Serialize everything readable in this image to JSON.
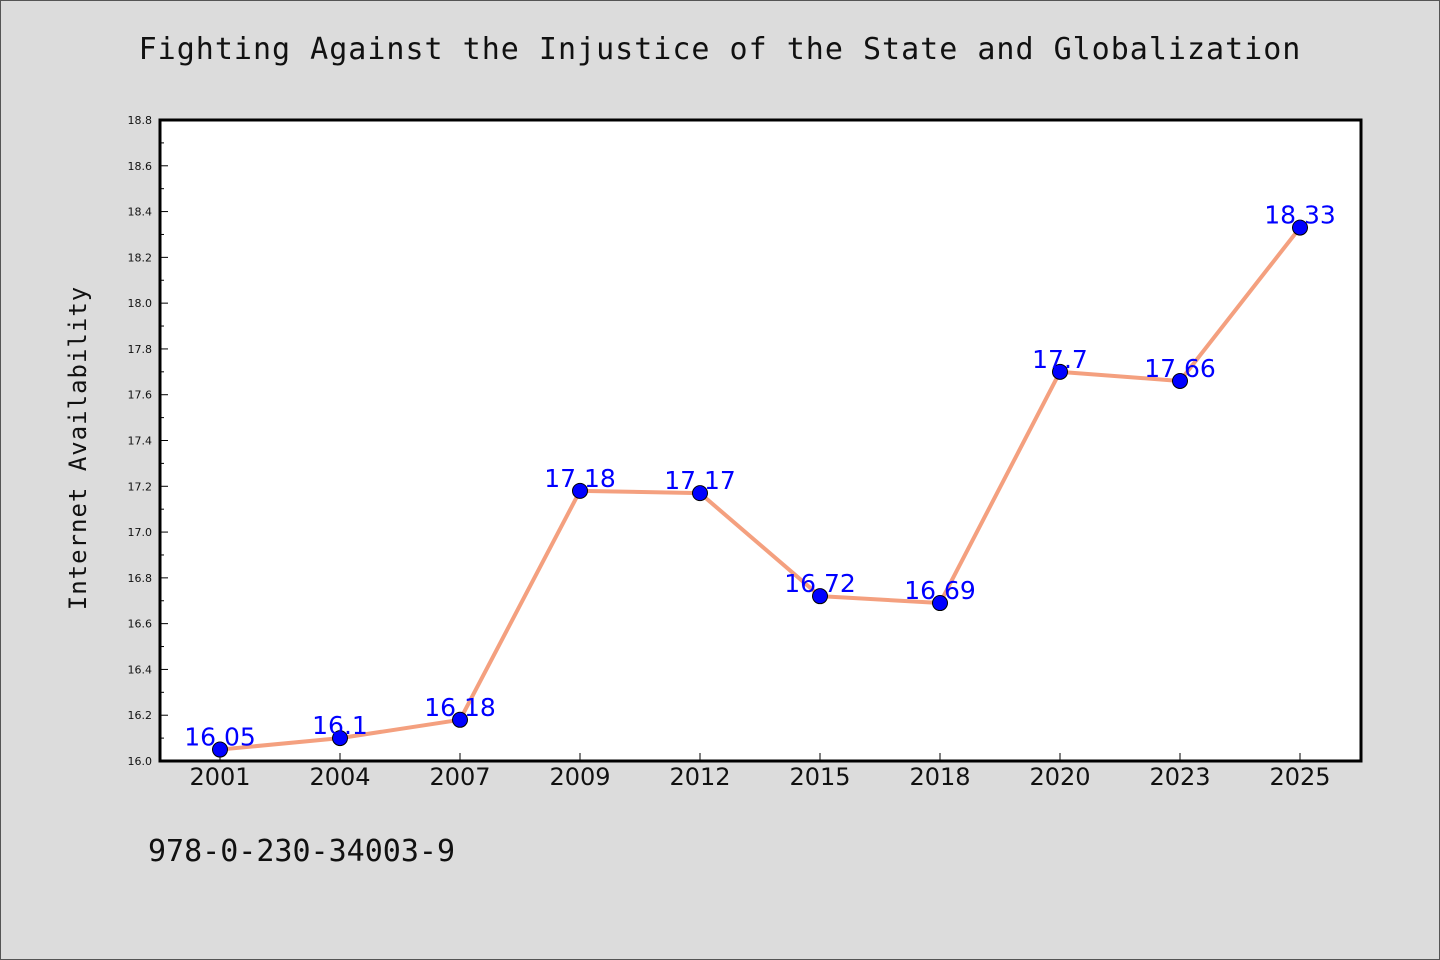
{
  "title": "Fighting Against the Injustice of the State and Globalization",
  "footer_code": "978-0-230-34003-9",
  "chart_data": {
    "type": "line",
    "title": "Fighting Against the Injustice of the State and Globalization",
    "xlabel": "",
    "ylabel": "Internet Availability",
    "categories": [
      "2001",
      "2004",
      "2007",
      "2009",
      "2012",
      "2015",
      "2018",
      "2020",
      "2023",
      "2025"
    ],
    "series": [
      {
        "values": [
          16.05,
          16.1,
          16.18,
          17.18,
          17.17,
          16.72,
          16.69,
          17.7,
          17.66,
          18.33
        ],
        "labels": [
          "16.05",
          "16.1",
          "16.18",
          "17.18",
          "17.17",
          "16.72",
          "16.69",
          "17.7",
          "17.66",
          "18.33"
        ]
      }
    ],
    "ylim": [
      16.0,
      18.8
    ],
    "yticks": [
      "16.0",
      "16.2",
      "16.4",
      "16.6",
      "16.8",
      "17.0",
      "17.2",
      "17.4",
      "17.6",
      "17.8",
      "18.0",
      "18.2",
      "18.4",
      "18.6",
      "18.8"
    ],
    "grid": false,
    "legend": "none",
    "colors": {
      "line": "#f4a07f",
      "marker": "#0000ff",
      "data_label": "#0000ff",
      "background": "#dcdcdc",
      "plot_background": "#ffffff"
    }
  }
}
